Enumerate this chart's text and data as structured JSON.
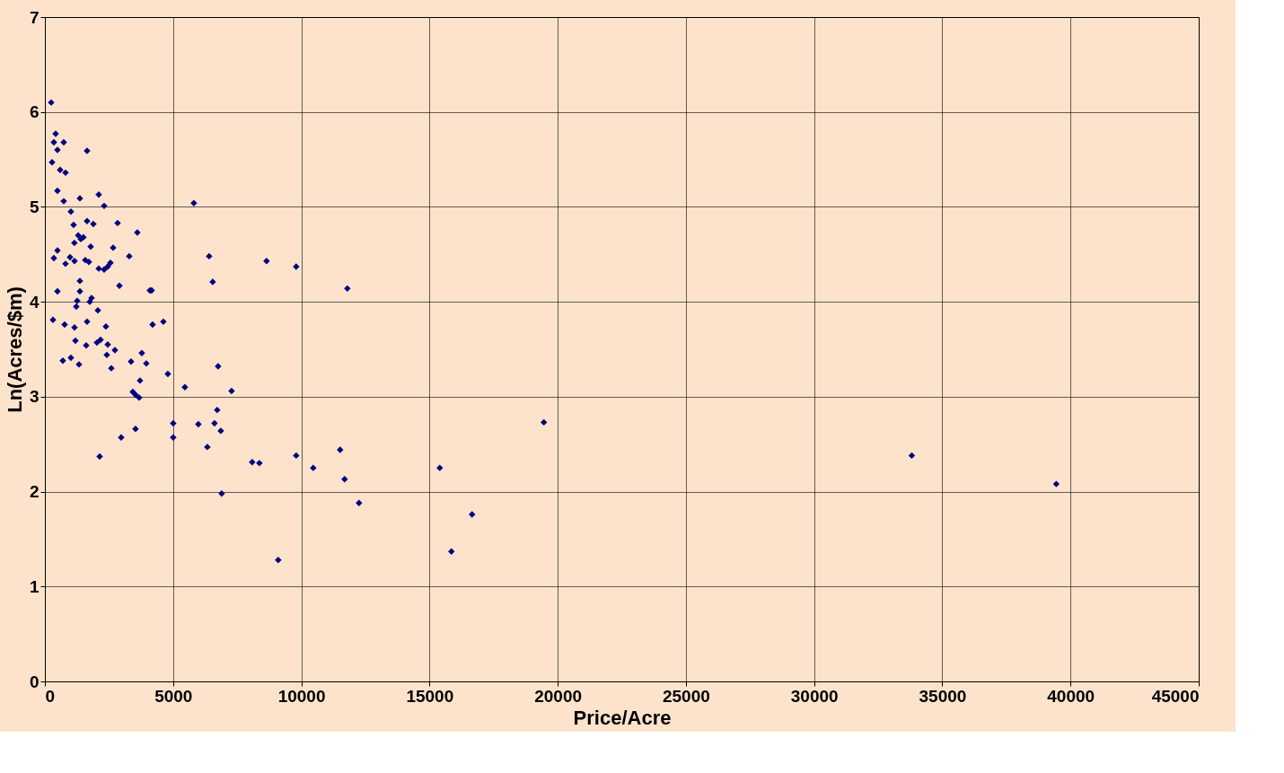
{
  "chart_data": {
    "type": "scatter",
    "xlabel": "Price/Acre",
    "ylabel": "Ln(Acres/$m)",
    "xlim": [
      0,
      45000
    ],
    "xticks": [
      0,
      5000,
      10000,
      15000,
      20000,
      25000,
      30000,
      35000,
      40000,
      45000
    ],
    "ylim": [
      0,
      7
    ],
    "yticks": [
      0,
      1,
      2,
      3,
      4,
      5,
      6,
      7
    ],
    "grid": true,
    "marker": "diamond",
    "legend": false,
    "series": [
      {
        "color": "#000080",
        "x": [
          245,
          420,
          350,
          490,
          735,
          280,
          595,
          805,
          1645,
          490,
          735,
          1365,
          2100,
          2310,
          1015,
          5810,
          1120,
          1645,
          1890,
          2835,
          3605,
          1300,
          1500,
          1400,
          1150,
          490,
          350,
          980,
          805,
          1155,
          1785,
          2660,
          1575,
          1715,
          2555,
          2450,
          2100,
          2310,
          3290,
          6405,
          8645,
          9800,
          6545,
          11795,
          490,
          1365,
          1365,
          2905,
          4095,
          4165,
          1260,
          1820,
          1750,
          1225,
          2065,
          315,
          770,
          1155,
          1645,
          2380,
          4200,
          4620,
          1190,
          1610,
          2030,
          2170,
          2450,
          2415,
          2730,
          3780,
          700,
          1015,
          1330,
          2590,
          3360,
          3955,
          6755,
          4795,
          5460,
          3710,
          3430,
          3535,
          3675,
          7280,
          6720,
          5005,
          5985,
          6615,
          6860,
          3535,
          5005,
          2975,
          19460,
          6335,
          11515,
          2135,
          9800,
          8085,
          8365,
          10465,
          15400,
          11690,
          33810,
          39445,
          6895,
          12250,
          16660,
          15855,
          9100
        ],
        "values": [
          6.1,
          5.77,
          5.68,
          5.6,
          5.68,
          5.47,
          5.39,
          5.36,
          5.59,
          5.17,
          5.06,
          5.09,
          5.13,
          5.01,
          4.95,
          5.04,
          4.81,
          4.85,
          4.82,
          4.83,
          4.73,
          4.7,
          4.68,
          4.66,
          4.62,
          4.54,
          4.46,
          4.47,
          4.4,
          4.43,
          4.58,
          4.57,
          4.44,
          4.42,
          4.41,
          4.37,
          4.35,
          4.34,
          4.48,
          4.48,
          4.43,
          4.37,
          4.21,
          4.14,
          4.11,
          4.22,
          4.11,
          4.17,
          4.12,
          4.12,
          4.01,
          4.04,
          4.0,
          3.95,
          3.91,
          3.81,
          3.76,
          3.73,
          3.79,
          3.74,
          3.76,
          3.79,
          3.59,
          3.54,
          3.57,
          3.6,
          3.55,
          3.44,
          3.49,
          3.46,
          3.38,
          3.41,
          3.34,
          3.3,
          3.37,
          3.35,
          3.32,
          3.24,
          3.1,
          3.17,
          3.05,
          3.02,
          2.99,
          3.06,
          2.86,
          2.72,
          2.71,
          2.72,
          2.64,
          2.66,
          2.57,
          2.57,
          2.73,
          2.47,
          2.44,
          2.37,
          2.38,
          2.31,
          2.3,
          2.25,
          2.25,
          2.13,
          2.38,
          2.08,
          1.98,
          1.88,
          1.76,
          1.37,
          1.28
        ]
      }
    ]
  }
}
